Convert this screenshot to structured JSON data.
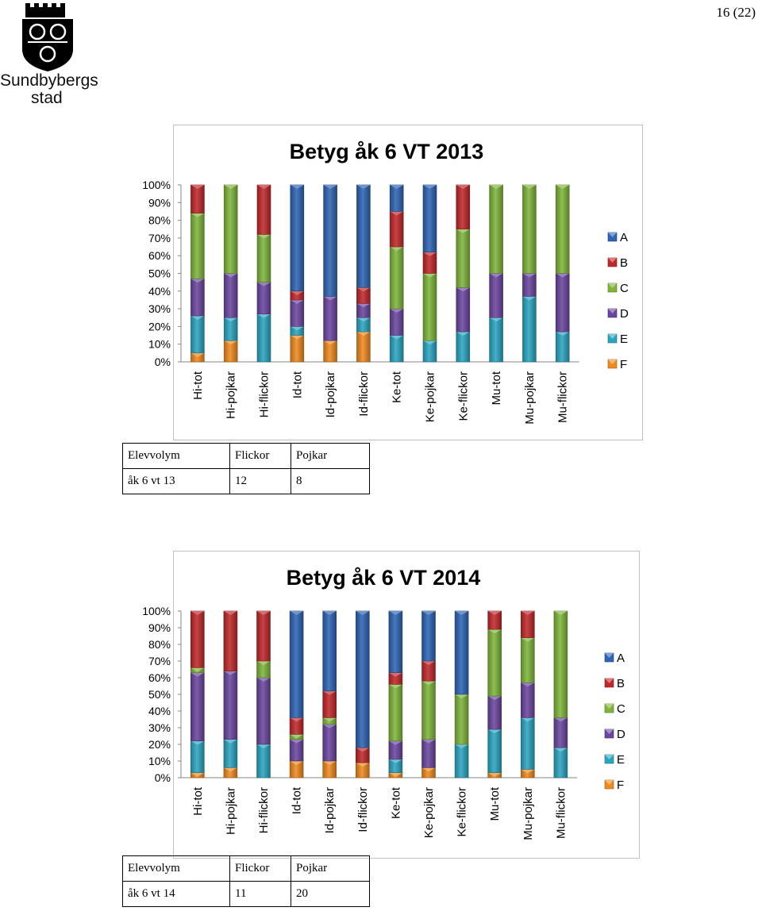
{
  "page": {
    "number": "16 (22)"
  },
  "logo": {
    "line1": "Sundbybergs",
    "line2": "stad"
  },
  "colors": {
    "A": "#2e64b4",
    "B": "#c0282a",
    "C": "#7fb53b",
    "D": "#6b46a0",
    "E": "#2aa5c0",
    "F": "#ef8a1f",
    "frame": "#bfbfbf",
    "axis": "#868686"
  },
  "chart_data": [
    {
      "type": "bar",
      "stacked": true,
      "title": "Betyg åk 6 VT 2013",
      "categories": [
        "Hi-tot",
        "Hi-pojkar",
        "Hi-flickor",
        "Id-tot",
        "Id-pojkar",
        "Id-flickor",
        "Ke-tot",
        "Ke-pojkar",
        "Ke-flickor",
        "Mu-tot",
        "Mu-pojkar",
        "Mu-flickor"
      ],
      "yticks": [
        "0%",
        "10%",
        "20%",
        "30%",
        "40%",
        "50%",
        "60%",
        "70%",
        "80%",
        "90%",
        "100%"
      ],
      "ylim": [
        0,
        100
      ],
      "legend_position": "right",
      "legend": [
        "A",
        "B",
        "C",
        "D",
        "E",
        "F"
      ],
      "series": [
        {
          "name": "F",
          "values": [
            5,
            12,
            0,
            15,
            12,
            17,
            0,
            0,
            0,
            0,
            0,
            0
          ]
        },
        {
          "name": "E",
          "values": [
            21,
            13,
            27,
            5,
            0,
            8,
            15,
            12,
            17,
            25,
            37,
            17
          ]
        },
        {
          "name": "D",
          "values": [
            21,
            25,
            18,
            15,
            25,
            8,
            15,
            0,
            25,
            25,
            13,
            33
          ]
        },
        {
          "name": "C",
          "values": [
            37,
            50,
            27,
            0,
            0,
            0,
            35,
            38,
            33,
            50,
            50,
            50
          ]
        },
        {
          "name": "B",
          "values": [
            16,
            0,
            28,
            5,
            0,
            9,
            20,
            12,
            25,
            0,
            0,
            0
          ]
        },
        {
          "name": "A",
          "values": [
            0,
            0,
            0,
            60,
            63,
            58,
            15,
            38,
            0,
            0,
            0,
            0
          ]
        }
      ]
    },
    {
      "type": "bar",
      "stacked": true,
      "title": "Betyg åk 6 VT 2014",
      "categories": [
        "Hi-tot",
        "Hi-pojkar",
        "Hi-flickor",
        "Id-tot",
        "Id-pojkar",
        "Id-flickor",
        "Ke-tot",
        "Ke-pojkar",
        "Ke-flickor",
        "Mu-tot",
        "Mu-pojkar",
        "Mu-flickor"
      ],
      "yticks": [
        "0%",
        "10%",
        "20%",
        "30%",
        "40%",
        "50%",
        "60%",
        "70%",
        "80%",
        "90%",
        "100%"
      ],
      "ylim": [
        0,
        100
      ],
      "legend_position": "right",
      "legend": [
        "A",
        "B",
        "C",
        "D",
        "E",
        "F"
      ],
      "series": [
        {
          "name": "F",
          "values": [
            3,
            6,
            0,
            10,
            10,
            9,
            3,
            6,
            0,
            3,
            5,
            0
          ]
        },
        {
          "name": "E",
          "values": [
            19,
            17,
            20,
            0,
            0,
            0,
            8,
            0,
            20,
            26,
            31,
            18
          ]
        },
        {
          "name": "D",
          "values": [
            41,
            41,
            40,
            13,
            22,
            0,
            11,
            17,
            0,
            20,
            21,
            18
          ]
        },
        {
          "name": "C",
          "values": [
            3,
            0,
            10,
            3,
            4,
            0,
            34,
            35,
            30,
            40,
            27,
            64
          ]
        },
        {
          "name": "B",
          "values": [
            34,
            36,
            30,
            10,
            16,
            9,
            7,
            12,
            0,
            11,
            16,
            0
          ]
        },
        {
          "name": "A",
          "values": [
            0,
            0,
            0,
            64,
            48,
            82,
            37,
            30,
            50,
            0,
            0,
            0
          ]
        }
      ]
    }
  ],
  "tables": [
    {
      "header": [
        "Elevvolym",
        "Flickor",
        "Pojkar"
      ],
      "row": [
        "åk 6 vt 13",
        "12",
        "8"
      ]
    },
    {
      "header": [
        "Elevvolym",
        "Flickor",
        "Pojkar"
      ],
      "row": [
        "åk 6 vt 14",
        "11",
        "20"
      ]
    }
  ]
}
